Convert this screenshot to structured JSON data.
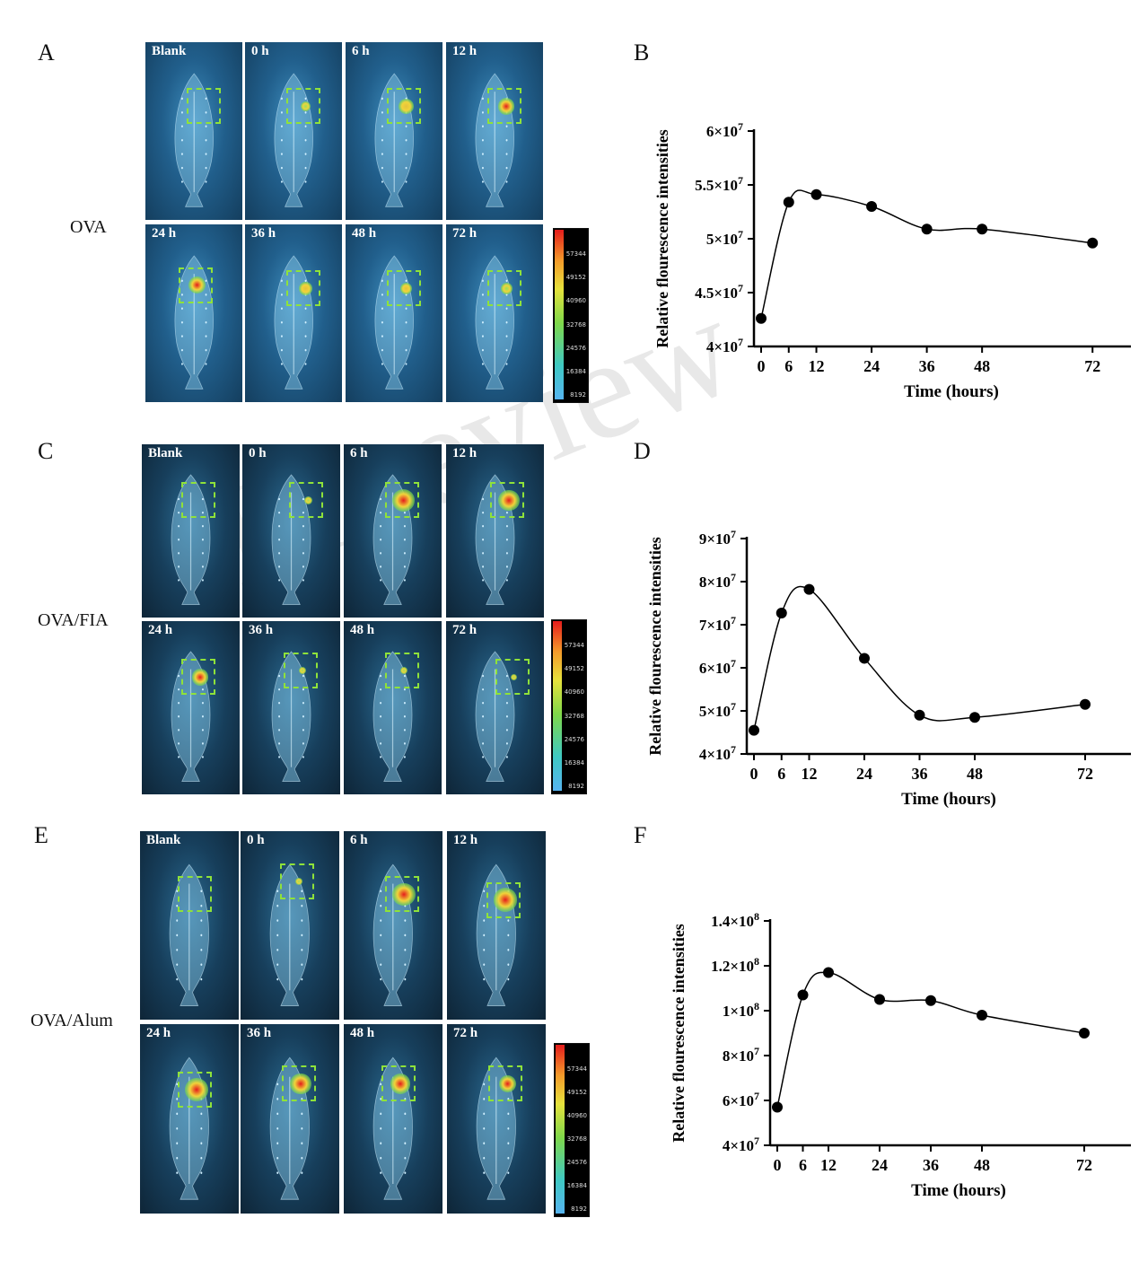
{
  "watermark": "In review",
  "groups": [
    {
      "letter_img": "A",
      "letter_chart": "B",
      "name": "OVA",
      "row1": [
        "Blank",
        "0 h",
        "6 h",
        "12 h"
      ],
      "row2": [
        "24 h",
        "36 h",
        "48 h",
        "72 h"
      ],
      "scale_ticks": [
        "57344",
        "49152",
        "40960",
        "32768",
        "24576",
        "16384",
        "8192"
      ],
      "hot": [
        0,
        0.25,
        0.5,
        0.55,
        0.6,
        0.4,
        0.35,
        0.3
      ]
    },
    {
      "letter_img": "C",
      "letter_chart": "D",
      "name": "OVA/FIA",
      "row1": [
        "Blank",
        "0 h",
        "6 h",
        "12 h"
      ],
      "row2": [
        "24 h",
        "36 h",
        "48 h",
        "72 h"
      ],
      "scale_ticks": [
        "57344",
        "49152",
        "40960",
        "32768",
        "24576",
        "16384",
        "8192"
      ],
      "hot": [
        0,
        0.15,
        0.85,
        0.8,
        0.55,
        0.1,
        0.1,
        0.05
      ]
    },
    {
      "letter_img": "E",
      "letter_chart": "F",
      "name": "OVA/Alum",
      "row1": [
        "Blank",
        "0 h",
        "6 h",
        "12 h"
      ],
      "row2": [
        "24 h",
        "36 h",
        "48 h",
        "72 h"
      ],
      "scale_ticks": [
        "57344",
        "49152",
        "40960",
        "32768",
        "24576",
        "16384",
        "8192"
      ],
      "hot": [
        0,
        0.1,
        0.9,
        0.95,
        0.9,
        0.8,
        0.75,
        0.6
      ]
    }
  ],
  "chart_data": [
    {
      "type": "line",
      "panel": "B",
      "xlabel": "Time (hours)",
      "ylabel": "Relative flourescence intensities",
      "x": [
        0,
        6,
        12,
        24,
        36,
        48,
        72
      ],
      "y": [
        42600000,
        53400000,
        54100000,
        53000000,
        50900000,
        50900000,
        49600000
      ],
      "xticks": [
        "0",
        "6",
        "12",
        "24",
        "36",
        "48",
        "72"
      ],
      "yticks": [
        {
          "value": 40000000,
          "base": "4×10",
          "exp": "7"
        },
        {
          "value": 45000000,
          "base": "4.5×10",
          "exp": "7"
        },
        {
          "value": 50000000,
          "base": "5×10",
          "exp": "7"
        },
        {
          "value": 55000000,
          "base": "5.5×10",
          "exp": "7"
        },
        {
          "value": 60000000,
          "base": "6×10",
          "exp": "7"
        }
      ],
      "xlim": [
        0,
        78
      ],
      "ylim": [
        40000000,
        60000000
      ],
      "grid": false
    },
    {
      "type": "line",
      "panel": "D",
      "xlabel": "Time (hours)",
      "ylabel": "Relative flourescence intensities",
      "x": [
        0,
        6,
        12,
        24,
        36,
        48,
        72
      ],
      "y": [
        45500000,
        72700000,
        78200000,
        62200000,
        49000000,
        48500000,
        51500000
      ],
      "xticks": [
        "0",
        "6",
        "12",
        "24",
        "36",
        "48",
        "72"
      ],
      "yticks": [
        {
          "value": 40000000,
          "base": "4×10",
          "exp": "7"
        },
        {
          "value": 50000000,
          "base": "5×10",
          "exp": "7"
        },
        {
          "value": 60000000,
          "base": "6×10",
          "exp": "7"
        },
        {
          "value": 70000000,
          "base": "7×10",
          "exp": "7"
        },
        {
          "value": 80000000,
          "base": "8×10",
          "exp": "7"
        },
        {
          "value": 90000000,
          "base": "9×10",
          "exp": "7"
        }
      ],
      "xlim": [
        0,
        80
      ],
      "ylim": [
        40000000,
        90000000
      ],
      "grid": false
    },
    {
      "type": "line",
      "panel": "F",
      "xlabel": "Time (hours)",
      "ylabel": "Relative flourescence intensities",
      "x": [
        0,
        6,
        12,
        24,
        36,
        48,
        72
      ],
      "y": [
        57000000,
        107000000,
        117000000,
        105000000,
        104500000,
        98000000,
        90000000
      ],
      "xticks": [
        "0",
        "6",
        "12",
        "24",
        "36",
        "48",
        "72"
      ],
      "yticks": [
        {
          "value": 40000000,
          "base": "4×10",
          "exp": "7"
        },
        {
          "value": 60000000,
          "base": "6×10",
          "exp": "7"
        },
        {
          "value": 80000000,
          "base": "8×10",
          "exp": "7"
        },
        {
          "value": 100000000,
          "base": "1×10",
          "exp": "8"
        },
        {
          "value": 120000000,
          "base": "1.2×10",
          "exp": "8"
        },
        {
          "value": 140000000,
          "base": "1.4×10",
          "exp": "8"
        }
      ],
      "xlim": [
        0,
        80
      ],
      "ylim": [
        40000000,
        140000000
      ],
      "grid": false
    }
  ]
}
